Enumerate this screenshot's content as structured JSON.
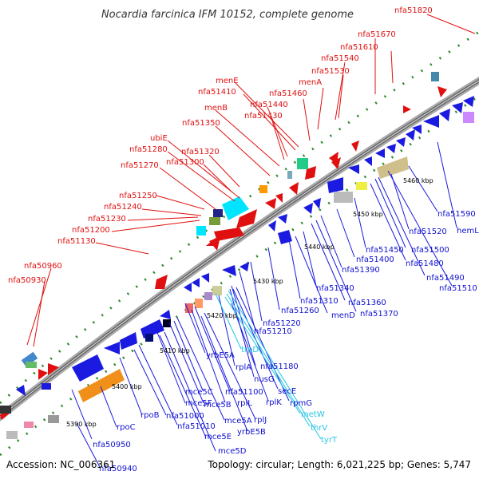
{
  "title": "Nocardia farcinica IFM 10152, complete genome",
  "footer": {
    "accession": "Accession: NC_006361",
    "info": "Topology: circular; Length: 6,021,225 bp; Genes: 5,747"
  },
  "kbp_ticks": [
    "5390 kbp",
    "5400 kbp",
    "5410 kbp",
    "5420 kbp",
    "5430 kbp",
    "5440 kbp",
    "5450 kbp",
    "5460 kbp"
  ],
  "top_labels": [
    "nfa51820",
    "nfa51670",
    "nfa51610",
    "nfa51540",
    "nfa51530",
    "menA",
    "nfa51460",
    "menE",
    "nfa51410",
    "nfa51440",
    "nfa51430",
    "menB",
    "nfa51350",
    "ubiE",
    "nfa51280",
    "nfa51320",
    "nfa51270",
    "nfa51300",
    "nfa51250",
    "nfa51240",
    "nfa51230",
    "nfa51200",
    "nfa51130",
    "nfa50960",
    "nfa50930"
  ],
  "bottom_labels": [
    "hemL",
    "nfa51590",
    "nfa51520",
    "nfa51500",
    "nfa51480",
    "nfa51490",
    "nfa51510",
    "nfa51450",
    "nfa51400",
    "nfa51390",
    "nfa51340",
    "nfa51360",
    "nfa51370",
    "nfa51310",
    "menD",
    "nfa51260",
    "nfa51220",
    "nfa51210",
    "nfa51180",
    "nusG",
    "secE",
    "rpmG",
    "trpD",
    "rplA",
    "rplK",
    "metW",
    "thrV",
    "tyrT",
    "yrbE5A",
    "nfa51100",
    "rplL",
    "rplJ",
    "yrbE5B",
    "mce5C",
    "mce5B",
    "mce5A",
    "mce5F",
    "mce5E",
    "mce5D",
    "nfa51000",
    "nfa51010",
    "rpoB",
    "rpoC",
    "nfa50950",
    "nfa50940"
  ],
  "colors": {
    "forward_label": "#e01010",
    "reverse_label": "#1010d0",
    "rna_label": "#22c6e6",
    "backbone": "#888888"
  }
}
